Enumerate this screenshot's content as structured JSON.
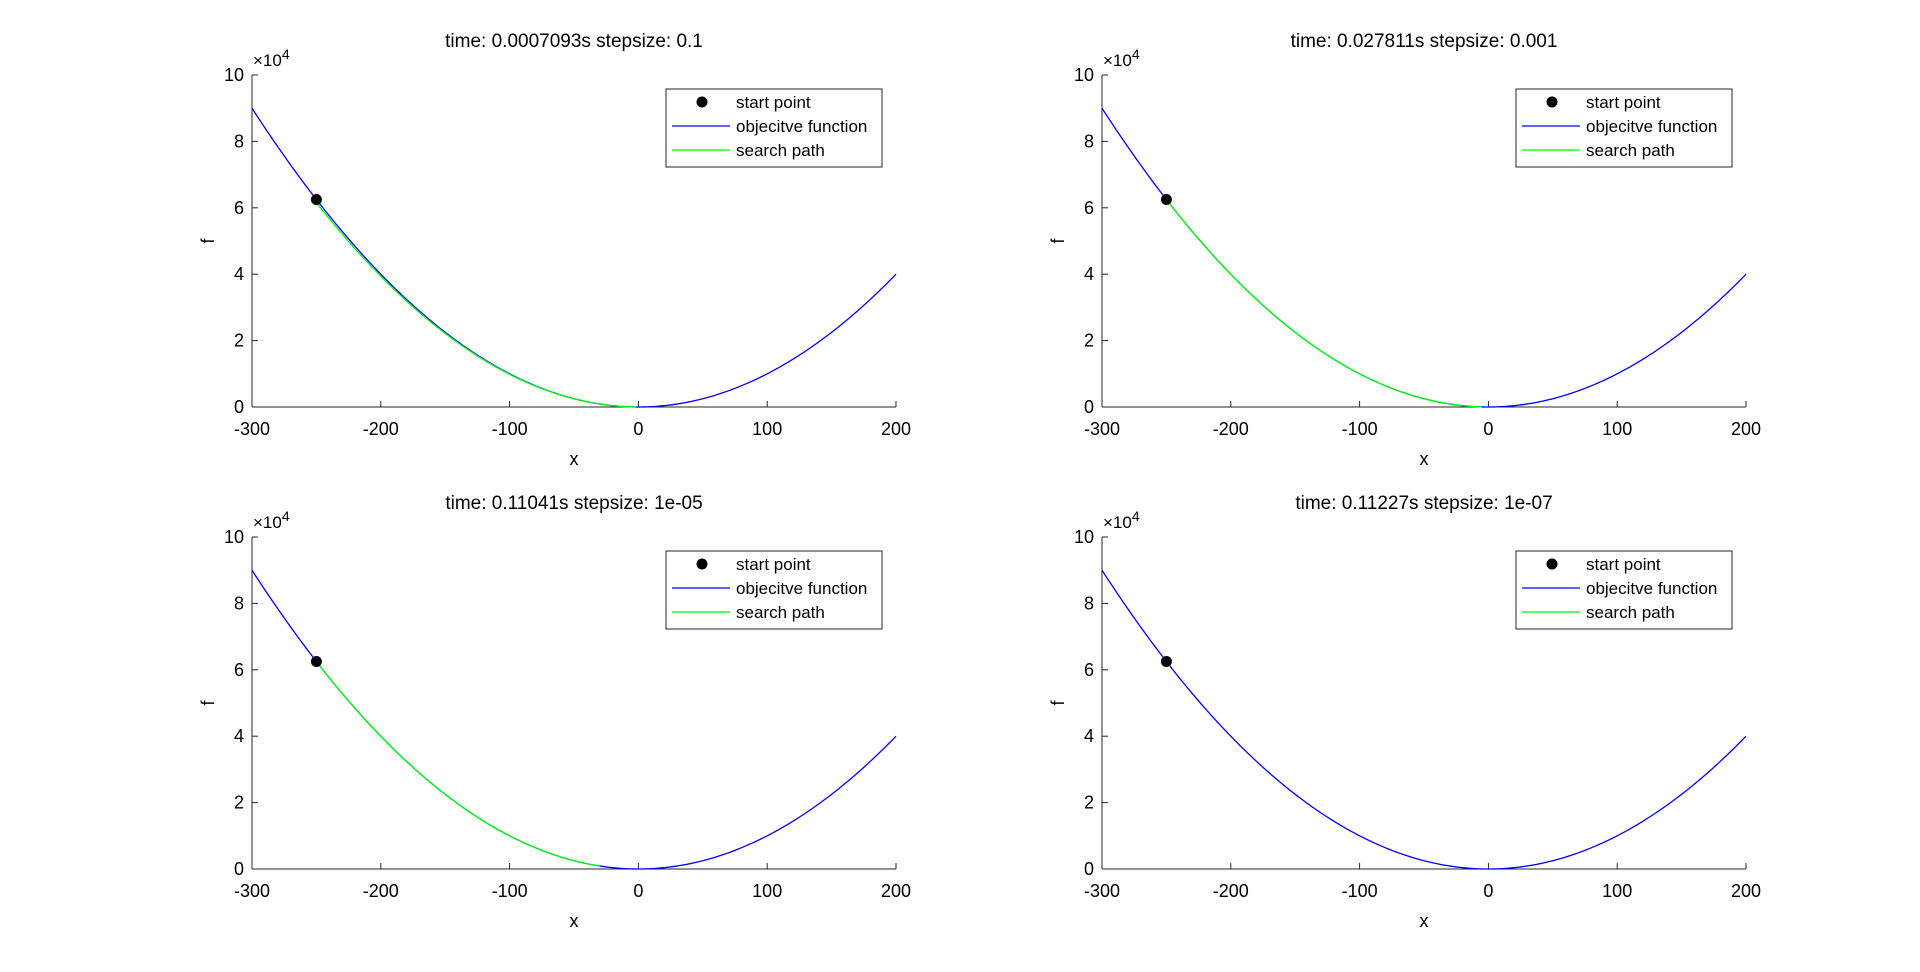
{
  "figure": {
    "background": "#ffffff",
    "axis_color": "#262626",
    "legend_labels": [
      "start point",
      "objecitve function",
      "search path"
    ],
    "colors": {
      "objective": "#0000ff",
      "search": "#00ff00",
      "marker": "#000000"
    }
  },
  "chart_data": [
    {
      "type": "line",
      "title": "time: 0.0007093s stepsize: 0.1",
      "xlabel": "x",
      "ylabel": "f",
      "xlim": [
        -300,
        200
      ],
      "ylim": [
        0,
        100000
      ],
      "xticks": [
        -300,
        -200,
        -100,
        0,
        100,
        200
      ],
      "xtick_labels": [
        "-300",
        "-200",
        "-100",
        "0",
        "100",
        "200"
      ],
      "yticks": [
        0,
        20000,
        40000,
        60000,
        80000,
        100000
      ],
      "ytick_labels": [
        "0",
        "2",
        "4",
        "6",
        "8",
        "10"
      ],
      "exponent_label": {
        "base": "×10",
        "power": "4"
      },
      "legend": {
        "position": "top-right",
        "entries": [
          "start point",
          "objecitve function",
          "search path"
        ]
      },
      "series": [
        {
          "name": "objecitve function",
          "kind": "line",
          "function": "x^2",
          "x_range": [
            -300,
            200
          ]
        },
        {
          "name": "search path",
          "kind": "line",
          "function": "x^2",
          "x_range": [
            -250,
            -2
          ],
          "style": "slightly-below"
        },
        {
          "name": "start point",
          "kind": "marker",
          "x": -250,
          "y": 62500
        }
      ]
    },
    {
      "type": "line",
      "title": "time: 0.027811s stepsize: 0.001",
      "xlabel": "x",
      "ylabel": "f",
      "xlim": [
        -300,
        200
      ],
      "ylim": [
        0,
        100000
      ],
      "xticks": [
        -300,
        -200,
        -100,
        0,
        100,
        200
      ],
      "xtick_labels": [
        "-300",
        "-200",
        "-100",
        "0",
        "100",
        "200"
      ],
      "yticks": [
        0,
        20000,
        40000,
        60000,
        80000,
        100000
      ],
      "ytick_labels": [
        "0",
        "2",
        "4",
        "6",
        "8",
        "10"
      ],
      "exponent_label": {
        "base": "×10",
        "power": "4"
      },
      "legend": {
        "position": "top-right",
        "entries": [
          "start point",
          "objecitve function",
          "search path"
        ]
      },
      "series": [
        {
          "name": "objecitve function",
          "kind": "line",
          "function": "x^2",
          "x_range": [
            -300,
            200
          ]
        },
        {
          "name": "search path",
          "kind": "line",
          "function": "x^2",
          "x_range": [
            -250,
            -5
          ]
        },
        {
          "name": "start point",
          "kind": "marker",
          "x": -250,
          "y": 62500
        }
      ]
    },
    {
      "type": "line",
      "title": "time: 0.11041s stepsize: 1e-05",
      "xlabel": "x",
      "ylabel": "f",
      "xlim": [
        -300,
        200
      ],
      "ylim": [
        0,
        100000
      ],
      "xticks": [
        -300,
        -200,
        -100,
        0,
        100,
        200
      ],
      "xtick_labels": [
        "-300",
        "-200",
        "-100",
        "0",
        "100",
        "200"
      ],
      "yticks": [
        0,
        20000,
        40000,
        60000,
        80000,
        100000
      ],
      "ytick_labels": [
        "0",
        "2",
        "4",
        "6",
        "8",
        "10"
      ],
      "exponent_label": {
        "base": "×10",
        "power": "4"
      },
      "legend": {
        "position": "top-right",
        "entries": [
          "start point",
          "objecitve function",
          "search path"
        ]
      },
      "series": [
        {
          "name": "objecitve function",
          "kind": "line",
          "function": "x^2",
          "x_range": [
            -300,
            200
          ]
        },
        {
          "name": "search path",
          "kind": "line",
          "function": "x^2",
          "x_range": [
            -250,
            -30
          ]
        },
        {
          "name": "start point",
          "kind": "marker",
          "x": -250,
          "y": 62500
        }
      ]
    },
    {
      "type": "line",
      "title": "time: 0.11227s stepsize: 1e-07",
      "xlabel": "x",
      "ylabel": "f",
      "xlim": [
        -300,
        200
      ],
      "ylim": [
        0,
        100000
      ],
      "xticks": [
        -300,
        -200,
        -100,
        0,
        100,
        200
      ],
      "xtick_labels": [
        "-300",
        "-200",
        "-100",
        "0",
        "100",
        "200"
      ],
      "yticks": [
        0,
        20000,
        40000,
        60000,
        80000,
        100000
      ],
      "ytick_labels": [
        "0",
        "2",
        "4",
        "6",
        "8",
        "10"
      ],
      "exponent_label": {
        "base": "×10",
        "power": "4"
      },
      "legend": {
        "position": "top-right",
        "entries": [
          "start point",
          "objecitve function",
          "search path"
        ]
      },
      "series": [
        {
          "name": "objecitve function",
          "kind": "line",
          "function": "x^2",
          "x_range": [
            -300,
            200
          ]
        },
        {
          "name": "search path",
          "kind": "line",
          "function": "x^2",
          "x_range": [
            -250,
            -249.9
          ]
        },
        {
          "name": "start point",
          "kind": "marker",
          "x": -250,
          "y": 62500
        }
      ]
    }
  ]
}
